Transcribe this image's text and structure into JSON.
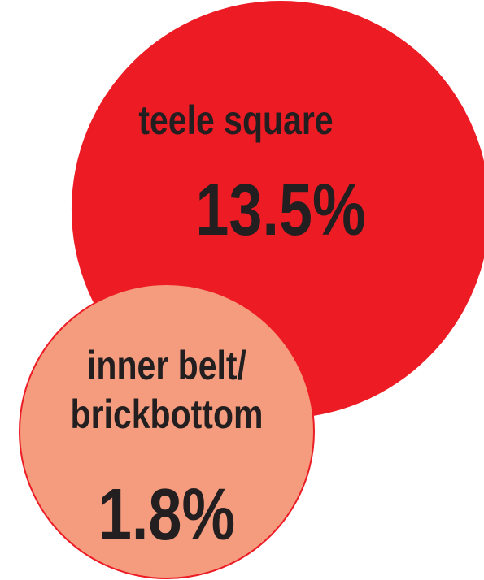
{
  "chart_data": {
    "type": "bubble",
    "categories": [
      "teele square",
      "inner belt/ brickbottom"
    ],
    "values": [
      13.5,
      1.8
    ],
    "value_labels": [
      "13.5%",
      "1.8%"
    ],
    "colors": [
      "#ed1c24",
      "#f59c7e"
    ]
  }
}
